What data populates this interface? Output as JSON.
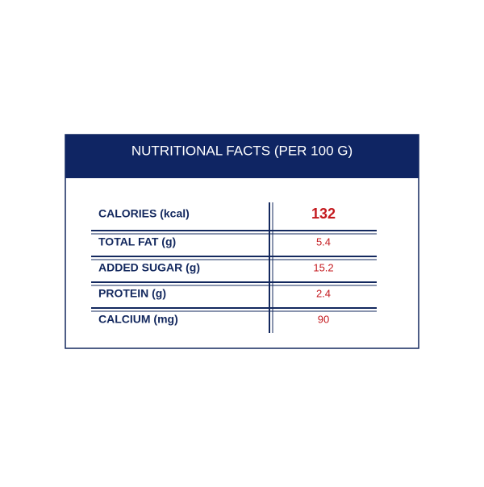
{
  "header": {
    "title": "NUTRITIONAL FACTS (PER 100 G)"
  },
  "table": {
    "rows": [
      [
        "CALORIES (kcal)",
        "132"
      ],
      [
        "TOTAL FAT (g)",
        "5.4"
      ],
      [
        "ADDED SUGAR (g)",
        "15.2"
      ],
      [
        "PROTEIN (g)",
        "2.4"
      ],
      [
        "CALCIUM (mg)",
        "90"
      ]
    ]
  }
}
